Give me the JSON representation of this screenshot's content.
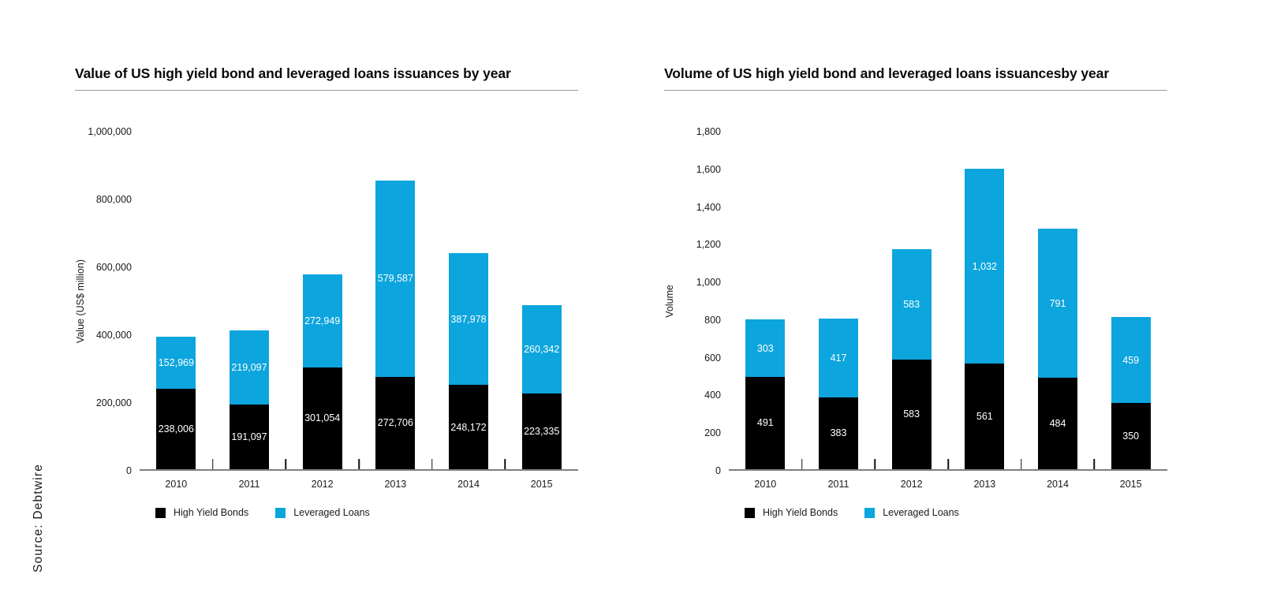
{
  "page": {
    "source_label": "Source: Debtwire"
  },
  "colors": {
    "high_yield_bonds": "#000000",
    "leveraged_loans": "#0DA5DD",
    "axis_line": "#7f7f7f",
    "title_rule": "#9a9a9a"
  },
  "chart_data": [
    {
      "type": "bar",
      "stacked": true,
      "title": "Value of US high yield bond and leveraged loans issuances by year",
      "xlabel": "",
      "ylabel": "Value (US$ million)",
      "categories": [
        "2010",
        "2011",
        "2012",
        "2013",
        "2014",
        "2015"
      ],
      "ylim": [
        0,
        1000000
      ],
      "yticks": [
        "0",
        "200,000",
        "400,000",
        "600,000",
        "800,000",
        "1,000,000"
      ],
      "grid": false,
      "legend_position": "bottom",
      "series": [
        {
          "name": "High Yield Bonds",
          "color": "#000000",
          "values": [
            238006,
            191097,
            301054,
            272706,
            248172,
            223335
          ],
          "labels": [
            "238,006",
            "191,097",
            "301,054",
            "272,706",
            "248,172",
            "223,335"
          ]
        },
        {
          "name": "Leveraged Loans",
          "color": "#0DA5DD",
          "values": [
            152969,
            219097,
            272949,
            579587,
            387978,
            260342
          ],
          "labels": [
            "152,969",
            "219,097",
            "272,949",
            "579,587",
            "387,978",
            "260,342"
          ]
        }
      ]
    },
    {
      "type": "bar",
      "stacked": true,
      "title": "Volume of US high yield bond and leveraged loans issuancesby year",
      "xlabel": "",
      "ylabel": "Volume",
      "categories": [
        "2010",
        "2011",
        "2012",
        "2013",
        "2014",
        "2015"
      ],
      "ylim": [
        0,
        1800
      ],
      "yticks": [
        "0",
        "200",
        "400",
        "600",
        "800",
        "1,000",
        "1,200",
        "1,400",
        "1,600",
        "1,800"
      ],
      "grid": false,
      "legend_position": "bottom",
      "series": [
        {
          "name": "High Yield Bonds",
          "color": "#000000",
          "values": [
            491,
            383,
            583,
            561,
            484,
            350
          ],
          "labels": [
            "491",
            "383",
            "583",
            "561",
            "484",
            "350"
          ]
        },
        {
          "name": "Leveraged Loans",
          "color": "#0DA5DD",
          "values": [
            303,
            417,
            583,
            1032,
            791,
            459
          ],
          "labels": [
            "303",
            "417",
            "583",
            "1,032",
            "791",
            "459"
          ]
        }
      ]
    }
  ]
}
